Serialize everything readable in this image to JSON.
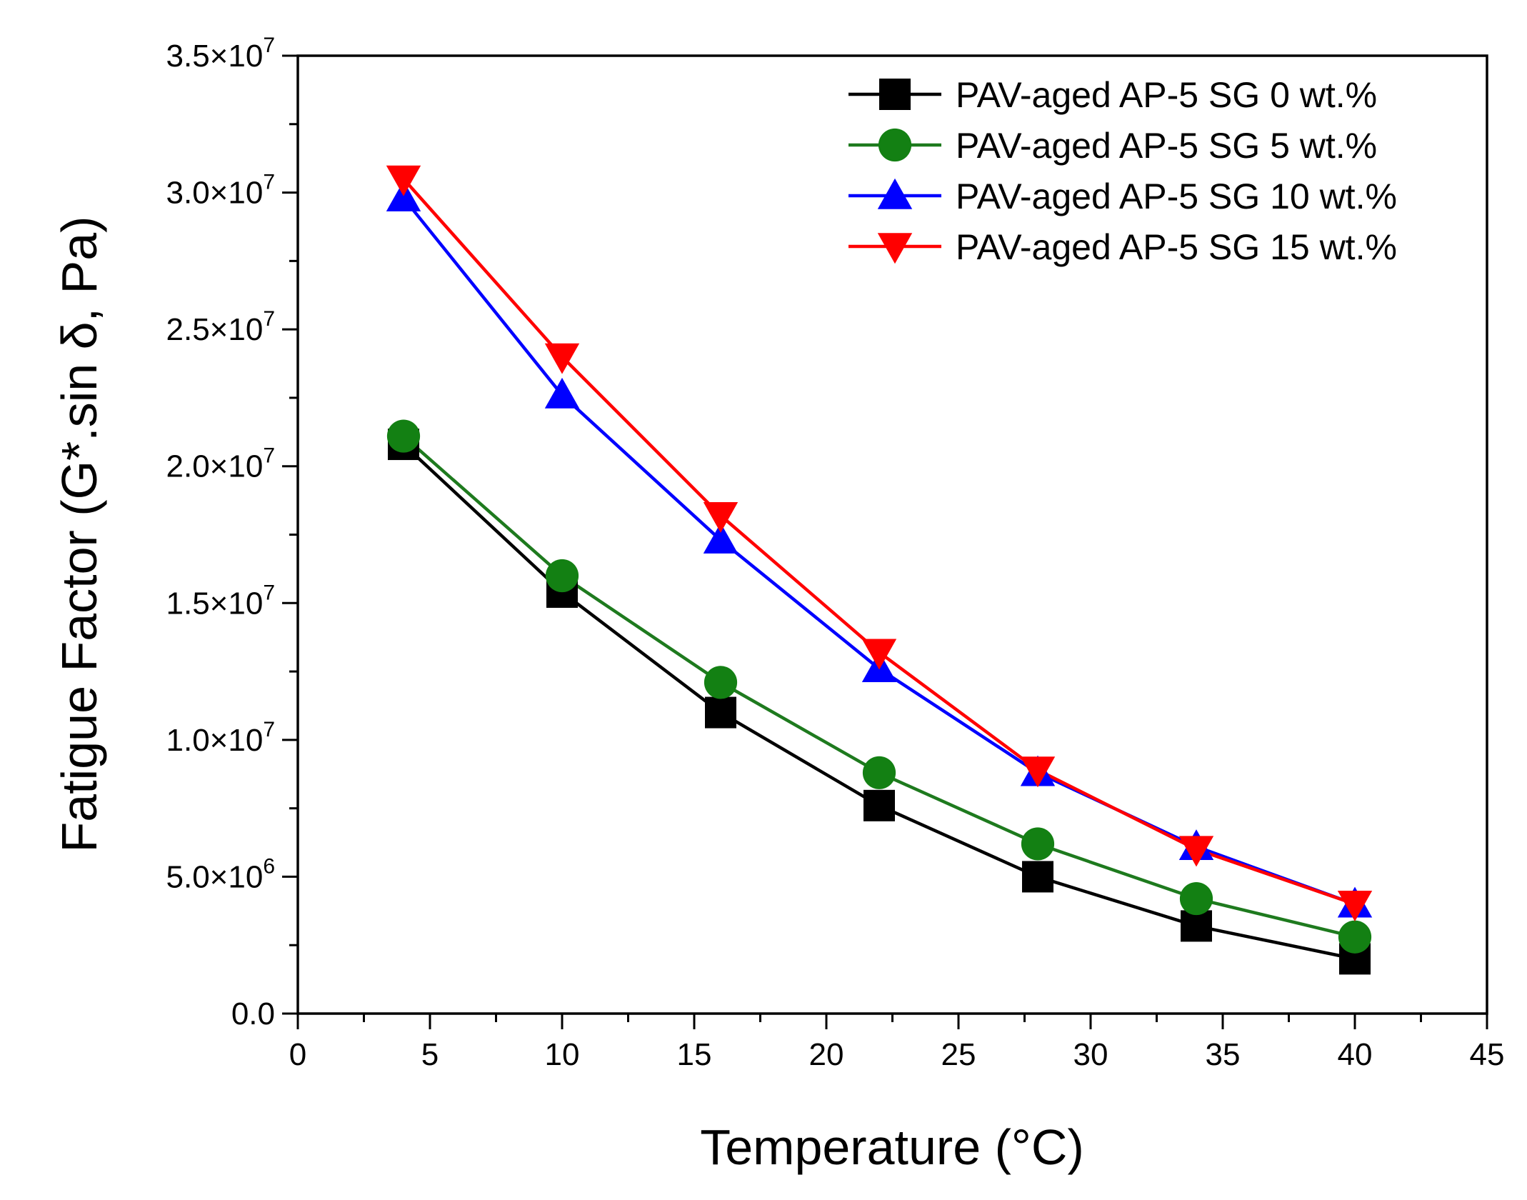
{
  "chart_data": {
    "type": "line",
    "title": "",
    "xlabel": "Temperature (°C)",
    "ylabel": "Fatigue Factor (G*.sin δ, Pa)",
    "xlim": [
      0,
      45
    ],
    "ylim": [
      0,
      35000000
    ],
    "x_ticks": [
      0,
      5,
      10,
      15,
      20,
      25,
      30,
      35,
      40,
      45
    ],
    "x_tick_labels": [
      "0",
      "5",
      "10",
      "15",
      "20",
      "25",
      "30",
      "35",
      "40",
      "45"
    ],
    "y_ticks": [
      0,
      5000000,
      10000000,
      15000000,
      20000000,
      25000000,
      30000000,
      35000000
    ],
    "y_tick_labels": [
      {
        "mant": "0.0",
        "exp": ""
      },
      {
        "mant": "5.0×10",
        "exp": "6"
      },
      {
        "mant": "1.0×10",
        "exp": "7"
      },
      {
        "mant": "1.5×10",
        "exp": "7"
      },
      {
        "mant": "2.0×10",
        "exp": "7"
      },
      {
        "mant": "2.5×10",
        "exp": "7"
      },
      {
        "mant": "3.0×10",
        "exp": "7"
      },
      {
        "mant": "3.5×10",
        "exp": "7"
      }
    ],
    "grid": false,
    "legend_position": "top-right",
    "x": [
      4,
      10,
      16,
      22,
      28,
      34,
      40
    ],
    "series": [
      {
        "name": "PAV-aged AP-5 SG 0 wt.%",
        "color": "#000000",
        "line_color": "#000000",
        "marker": "square",
        "values": [
          20800000,
          15400000,
          11000000,
          7600000,
          5000000,
          3200000,
          2000000
        ]
      },
      {
        "name": "PAV-aged AP-5 SG 5 wt.%",
        "color": "#138013",
        "line_color": "#1e7a1e",
        "marker": "circle",
        "values": [
          21100000,
          16000000,
          12100000,
          8800000,
          6200000,
          4200000,
          2800000
        ]
      },
      {
        "name": "PAV-aged AP-5 SG 10 wt.%",
        "color": "#0000ff",
        "line_color": "#0000ff",
        "marker": "triangle-up",
        "values": [
          29800000,
          22600000,
          17300000,
          12600000,
          8800000,
          6100000,
          4000000
        ]
      },
      {
        "name": "PAV-aged AP-5 SG 15 wt.%",
        "color": "#ff0000",
        "line_color": "#ff0000",
        "marker": "triangle-down",
        "values": [
          30500000,
          24000000,
          18200000,
          13200000,
          8900000,
          6000000,
          4000000
        ]
      }
    ]
  }
}
